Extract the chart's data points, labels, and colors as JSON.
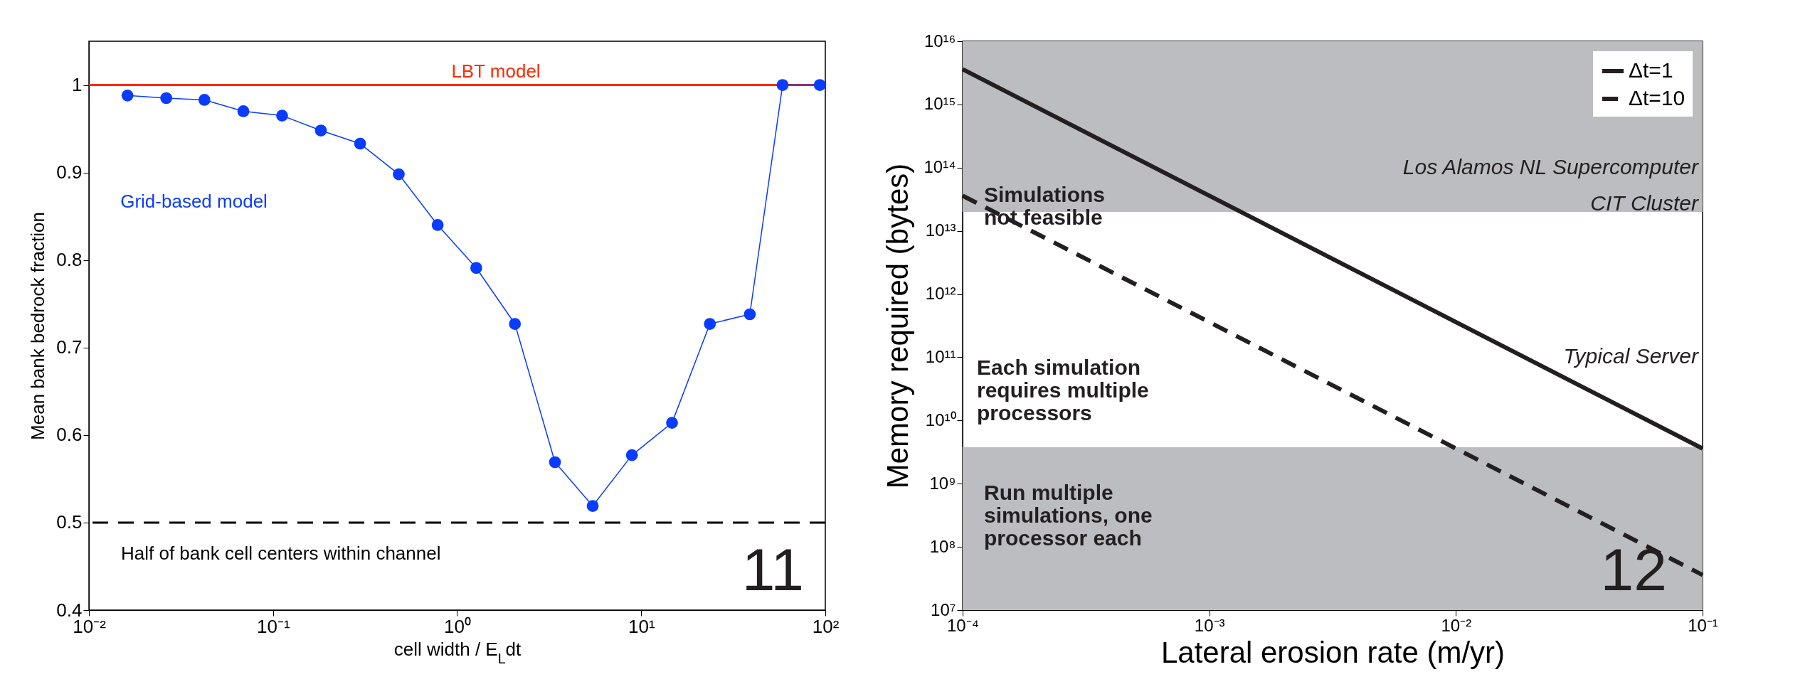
{
  "chart_data": [
    {
      "type": "line",
      "xlabel": "cell width / E$_{L}$dt",
      "ylabel": "Mean bank bedrock fraction",
      "log": "x",
      "legend": false,
      "grid": false,
      "marker": "circle",
      "xlim": [
        0.01,
        100
      ],
      "xticks": [
        {
          "value": 0.01,
          "label": "10⁻²"
        },
        {
          "value": 0.1,
          "label": "10⁻¹"
        },
        {
          "value": 1,
          "label": "10⁰"
        },
        {
          "value": 10,
          "label": "10¹"
        },
        {
          "value": 100,
          "label": "10²"
        }
      ],
      "ylim": [
        0.4,
        1.05
      ],
      "yticks": [
        0.4,
        0.5,
        0.6,
        0.7,
        0.8,
        0.9,
        1
      ],
      "x": [
        0.0162,
        0.0263,
        0.0424,
        0.069,
        0.112,
        0.182,
        0.297,
        0.482,
        0.784,
        1.27,
        2.06,
        3.4,
        5.45,
        8.9,
        14.7,
        23.6,
        38.9,
        58.6,
        93.3
      ],
      "series": [
        {
          "name": "Grid-based model",
          "color": "#0a3cff",
          "values": [
            0.988,
            0.985,
            0.983,
            0.97,
            0.965,
            0.948,
            0.933,
            0.898,
            0.84,
            0.791,
            0.727,
            0.569,
            0.519,
            0.577,
            0.614,
            0.727,
            0.738,
            1.0,
            1.0
          ]
        }
      ],
      "ref_lines": [
        {
          "axis": "y",
          "value": 1,
          "label": "LBT model",
          "color": "#ff2a00",
          "line_style": "solid"
        },
        {
          "axis": "y",
          "value": 0.5,
          "label": "Half of bank cell centers within channel",
          "color": "#000000",
          "line_style": "dashed"
        }
      ],
      "annotations": [
        "11"
      ]
    },
    {
      "type": "line",
      "xlabel": "Lateral erosion rate (m/yr)",
      "ylabel": "Memory required (bytes)",
      "log": "xy",
      "legend": "top right",
      "grid": false,
      "marker": "none",
      "xlim": [
        0.0001,
        0.1
      ],
      "xticks": [
        {
          "value": 0.0001,
          "label": "10⁻⁴"
        },
        {
          "value": 0.001,
          "label": "10⁻³"
        },
        {
          "value": 0.01,
          "label": "10⁻²"
        },
        {
          "value": 0.1,
          "label": "10⁻¹"
        }
      ],
      "x": [
        0.0001,
        0.1
      ],
      "ylim": [
        10000000,
        10000000000000000
      ],
      "yticks": [
        {
          "value": 10000000,
          "label": "10⁷"
        },
        {
          "value": 100000000,
          "label": "10⁸"
        },
        {
          "value": 1000000000,
          "label": "10⁹"
        },
        {
          "value": 10000000000,
          "label": "10¹⁰"
        },
        {
          "value": 100000000000,
          "label": "10¹¹"
        },
        {
          "value": 1000000000000,
          "label": "10¹²"
        },
        {
          "value": 10000000000000,
          "label": "10¹³"
        },
        {
          "value": 100000000000000,
          "label": "10¹⁴"
        },
        {
          "value": 1000000000000000,
          "label": "10¹⁵"
        },
        {
          "value": 10000000000000000,
          "label": "10¹⁶"
        }
      ],
      "series": [
        {
          "name": "Δt=1",
          "color": "#231f20",
          "line_style": "solid",
          "values": [
            3600000000000000,
            3600000000
          ]
        },
        {
          "name": "Δt=10",
          "color": "#231f20",
          "line_style": "dashed",
          "values": [
            36000000000000,
            36000000
          ]
        }
      ],
      "bands": [
        {
          "axis": "y",
          "from": 20000000000000,
          "to": 10000000000000000,
          "label": "Simulations\nnot feasible",
          "color": "#bcbdc1"
        },
        {
          "axis": "y",
          "from": 10000000,
          "to": 3800000000,
          "label": "Run multiple\nsimulations, one\nprocessor each",
          "color": "#bcbdc1"
        }
      ],
      "annotations": [
        "Los Alamos NL Supercomputer",
        "CIT Cluster",
        "Typical Server",
        "Each simulation\nrequires multiple\nprocessors",
        "12"
      ]
    }
  ]
}
